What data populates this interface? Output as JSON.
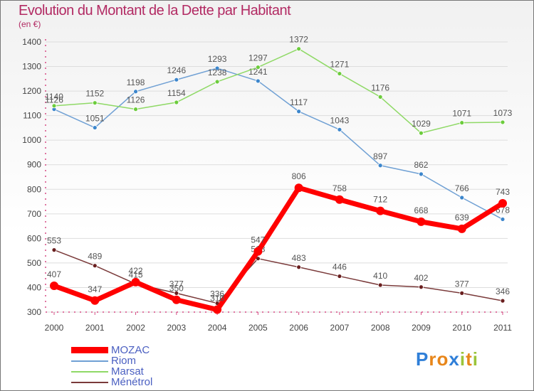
{
  "header": {
    "title": "Evolution du Montant de la Dette par Habitant",
    "subtitle": "(en €)"
  },
  "colors": {
    "title": "#b22a63",
    "legend_text": "#4a5fc1",
    "axis": "#d64a83",
    "grid": "#dddddd",
    "tick_text": "#444444",
    "value_text": "#555555"
  },
  "logo": {
    "letters": [
      {
        "ch": "P",
        "color": "#2f7fd8"
      },
      {
        "ch": "r",
        "color": "#e8861a"
      },
      {
        "ch": "o",
        "color": "#e8861a"
      },
      {
        "ch": "x",
        "color": "#2f7fd8"
      },
      {
        "ch": "i",
        "color": "#9bc43a"
      },
      {
        "ch": "t",
        "color": "#e8861a"
      },
      {
        "ch": "i",
        "color": "#9bc43a"
      }
    ]
  },
  "chart_data": {
    "type": "line",
    "title": "Evolution du Montant de la Dette par Habitant",
    "subtitle": "(en €)",
    "x": [
      "2000",
      "2001",
      "2002",
      "2003",
      "2004",
      "2005",
      "2006",
      "2007",
      "2008",
      "2009",
      "2010",
      "2011"
    ],
    "ylim": [
      300,
      1400
    ],
    "yticks": [
      300,
      400,
      500,
      600,
      700,
      800,
      900,
      1000,
      1100,
      1200,
      1300,
      1400
    ],
    "grid": true,
    "legend": "bottom-left",
    "series": [
      {
        "name": "MOZAC",
        "color": "#ff0000",
        "marker": "#ff0000",
        "width": 7,
        "radius": 6,
        "values": [
          407,
          347,
          422,
          350,
          310,
          547,
          806,
          758,
          712,
          668,
          639,
          743
        ]
      },
      {
        "name": "Riom",
        "color": "#6fa0d4",
        "marker": "#3c86cc",
        "width": 1.5,
        "radius": 3,
        "values": [
          1126,
          1051,
          1198,
          1246,
          1293,
          1241,
          1117,
          1043,
          897,
          862,
          766,
          678
        ]
      },
      {
        "name": "Marsat",
        "color": "#8fd966",
        "marker": "#6ccc3c",
        "width": 1.5,
        "radius": 3,
        "values": [
          1140,
          1152,
          1126,
          1154,
          1238,
          1297,
          1372,
          1271,
          1176,
          1029,
          1071,
          1073
        ]
      },
      {
        "name": "Ménétrol",
        "color": "#7a3a3a",
        "marker": "#6a1f1f",
        "width": 1.5,
        "radius": 3,
        "values": [
          553,
          489,
          415,
          377,
          336,
          518,
          483,
          446,
          410,
          402,
          377,
          346
        ]
      }
    ]
  }
}
